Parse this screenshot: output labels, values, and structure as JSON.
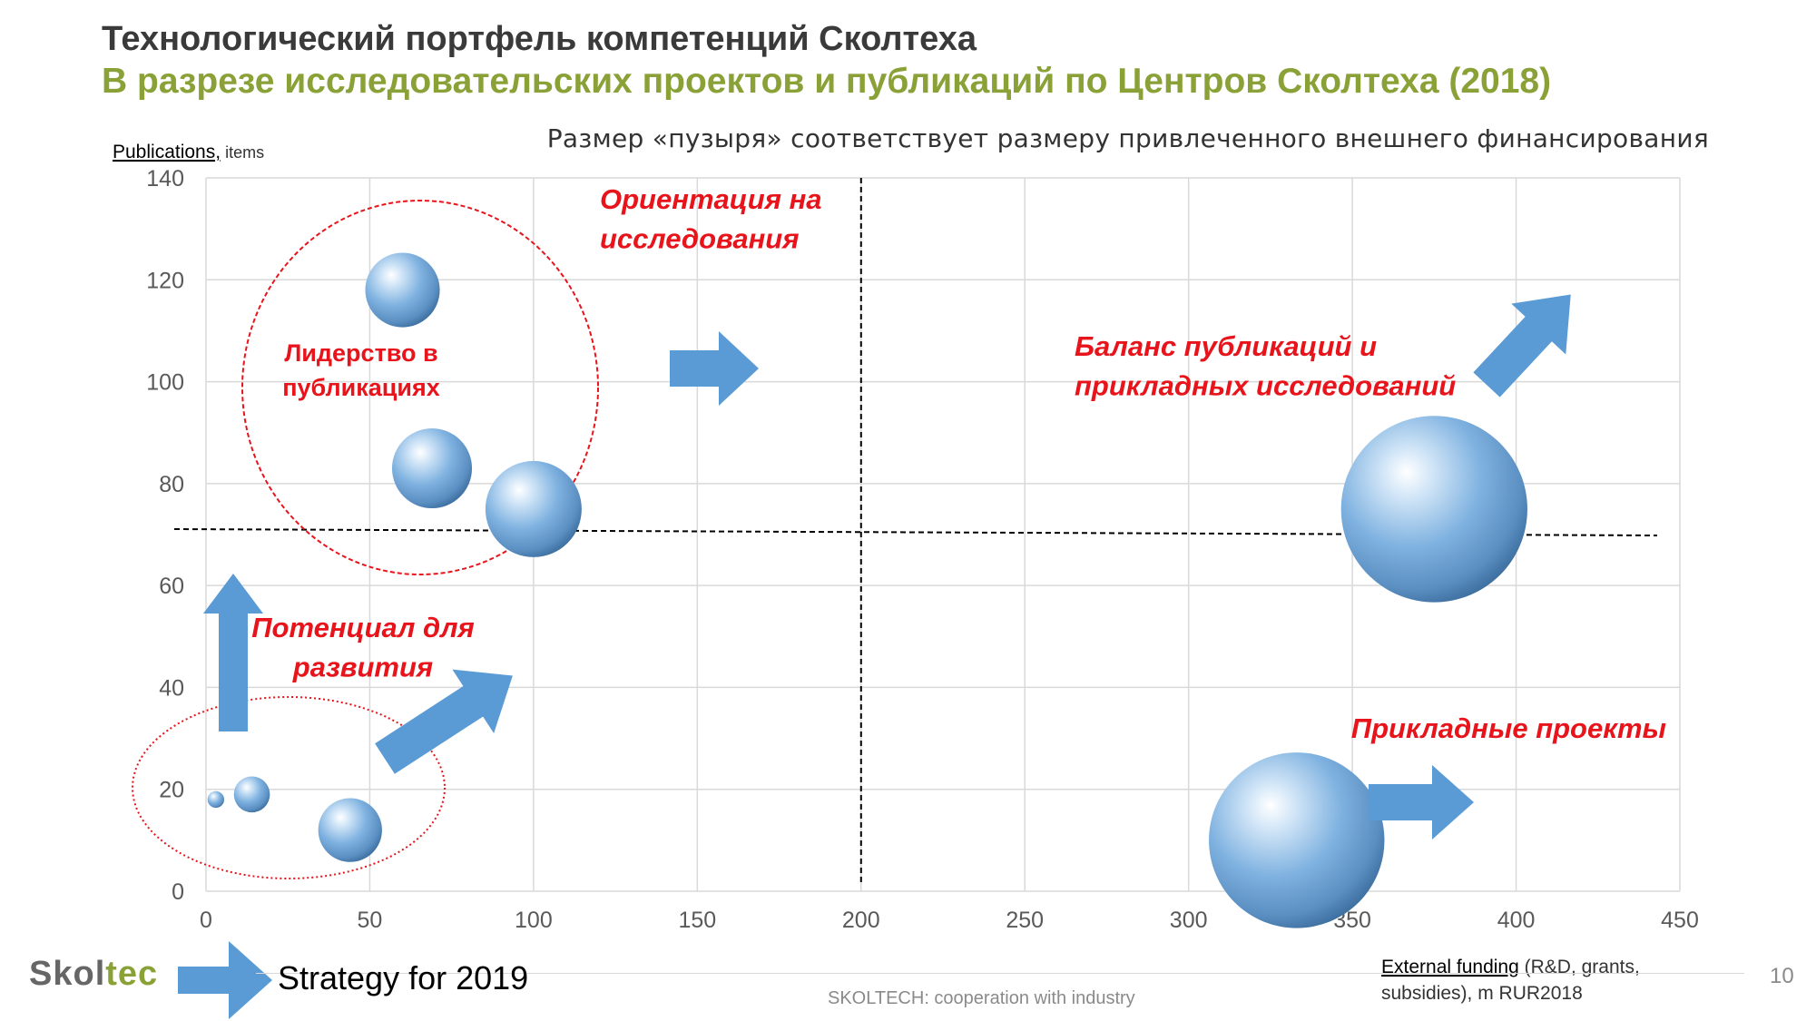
{
  "header": {
    "title": "Технологический портфель компетенций Сколтеха",
    "subtitle": "В разрезе исследовательских проектов и публикаций по Центров Сколтеха (2018)",
    "note": "Размер «пузыря» соответствует размеру привлеченного внешнего финансирования"
  },
  "chart_data": {
    "type": "bubble",
    "y_axis_title": "Publications,",
    "y_axis_unit": " items",
    "x_axis_title": "External funding",
    "x_axis_unit": " (R&D, grants,",
    "x_axis_unit2": "subsidies), m RUR2018",
    "xlim": [
      0,
      450
    ],
    "ylim": [
      0,
      140
    ],
    "x_ticks": [
      0,
      50,
      100,
      150,
      200,
      250,
      300,
      350,
      400,
      450
    ],
    "y_ticks": [
      0,
      20,
      40,
      60,
      80,
      100,
      120,
      140
    ],
    "grid": true,
    "divider_x": 200,
    "divider_y": 71,
    "points": [
      {
        "x": 60,
        "y": 118,
        "size": 60
      },
      {
        "x": 69,
        "y": 83,
        "size": 69
      },
      {
        "x": 100,
        "y": 75,
        "size": 100
      },
      {
        "x": 375,
        "y": 75,
        "size": 375
      },
      {
        "x": 333,
        "y": 10,
        "size": 333
      },
      {
        "x": 44,
        "y": 12,
        "size": 44
      },
      {
        "x": 14,
        "y": 19,
        "size": 14
      },
      {
        "x": 3,
        "y": 18,
        "size": 3
      }
    ],
    "annotations": {
      "research": "Ориентация на\nисследования",
      "balance": "Баланс публикаций и\nприкладных исследований",
      "leadership": "Лидерство в\nпубликациях",
      "potential": "Потенциал для\nразвития",
      "applied": "Прикладные проекты"
    },
    "colors": {
      "bubble": "#6fa8dc",
      "arrow": "#5b9bd5",
      "annotation": "#e8141b",
      "grid": "#d9d9d9"
    }
  },
  "footer": {
    "logo_part1": "Skol",
    "logo_part2": "tec",
    "strategy": "Strategy for 2019",
    "source": "SKOLTECH: cooperation with industry",
    "page": "10"
  }
}
